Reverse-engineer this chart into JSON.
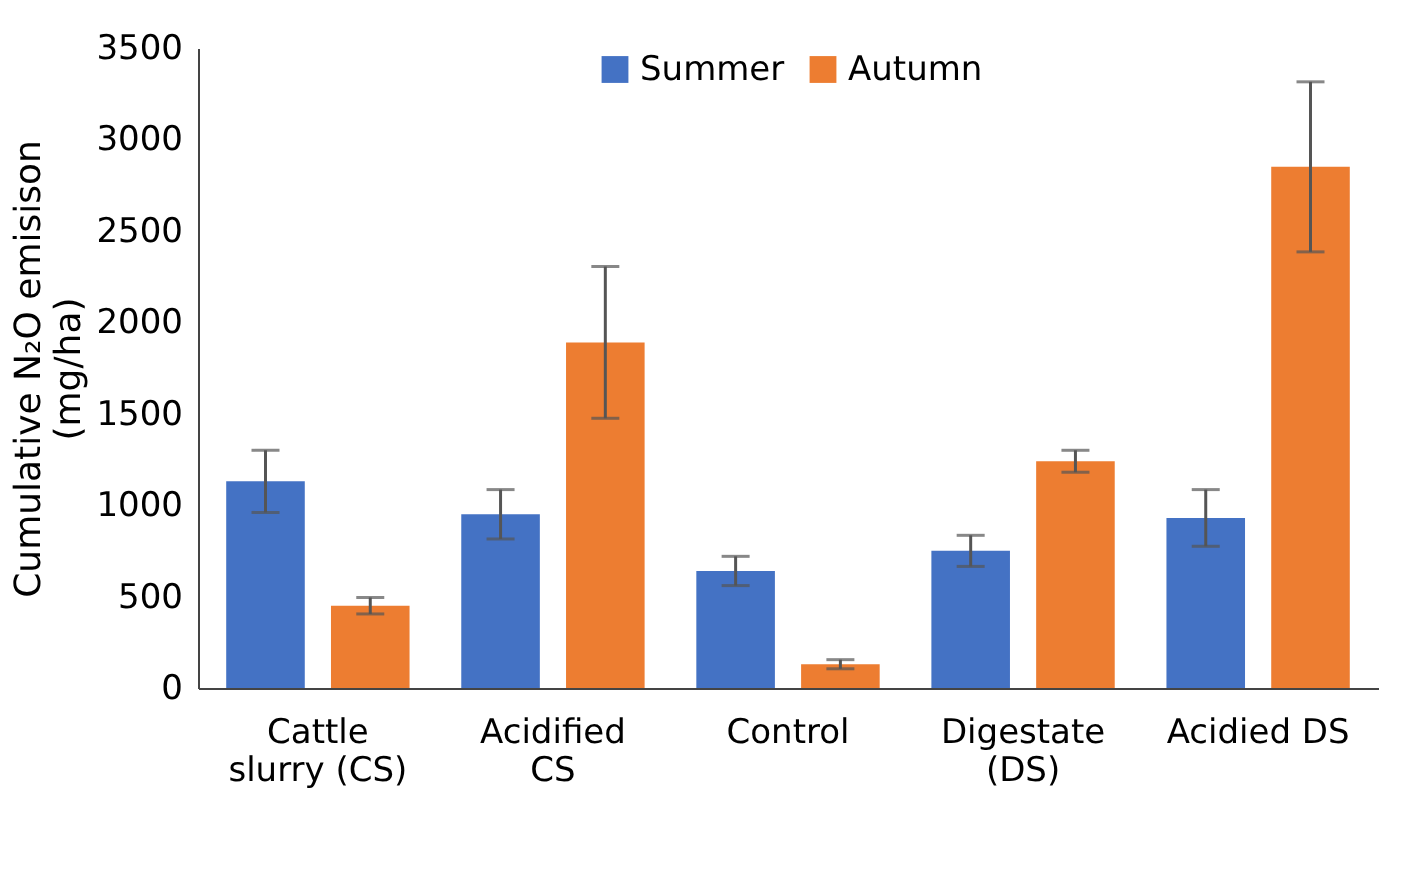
{
  "chart_data": {
    "type": "bar",
    "ylabel": "Cumulative N₂O emisison (mg/ha)",
    "categories": [
      "Cattle slurry (CS)",
      "Acidified CS",
      "Control",
      "Digestate (DS)",
      "Acidied DS"
    ],
    "series": [
      {
        "name": "Summer",
        "color": "#4472c4",
        "values": [
          1130,
          950,
          640,
          750,
          930
        ],
        "errors": [
          170,
          135,
          80,
          85,
          155
        ]
      },
      {
        "name": "Autumn",
        "color": "#ed7d31",
        "values": [
          450,
          1890,
          130,
          1240,
          2850
        ],
        "errors": [
          45,
          415,
          25,
          60,
          465
        ]
      }
    ],
    "ylim": [
      0,
      3500
    ],
    "yticks": [
      0,
      500,
      1000,
      1500,
      2000,
      2500,
      3000,
      3500
    ],
    "grid": false,
    "legend": "top"
  }
}
